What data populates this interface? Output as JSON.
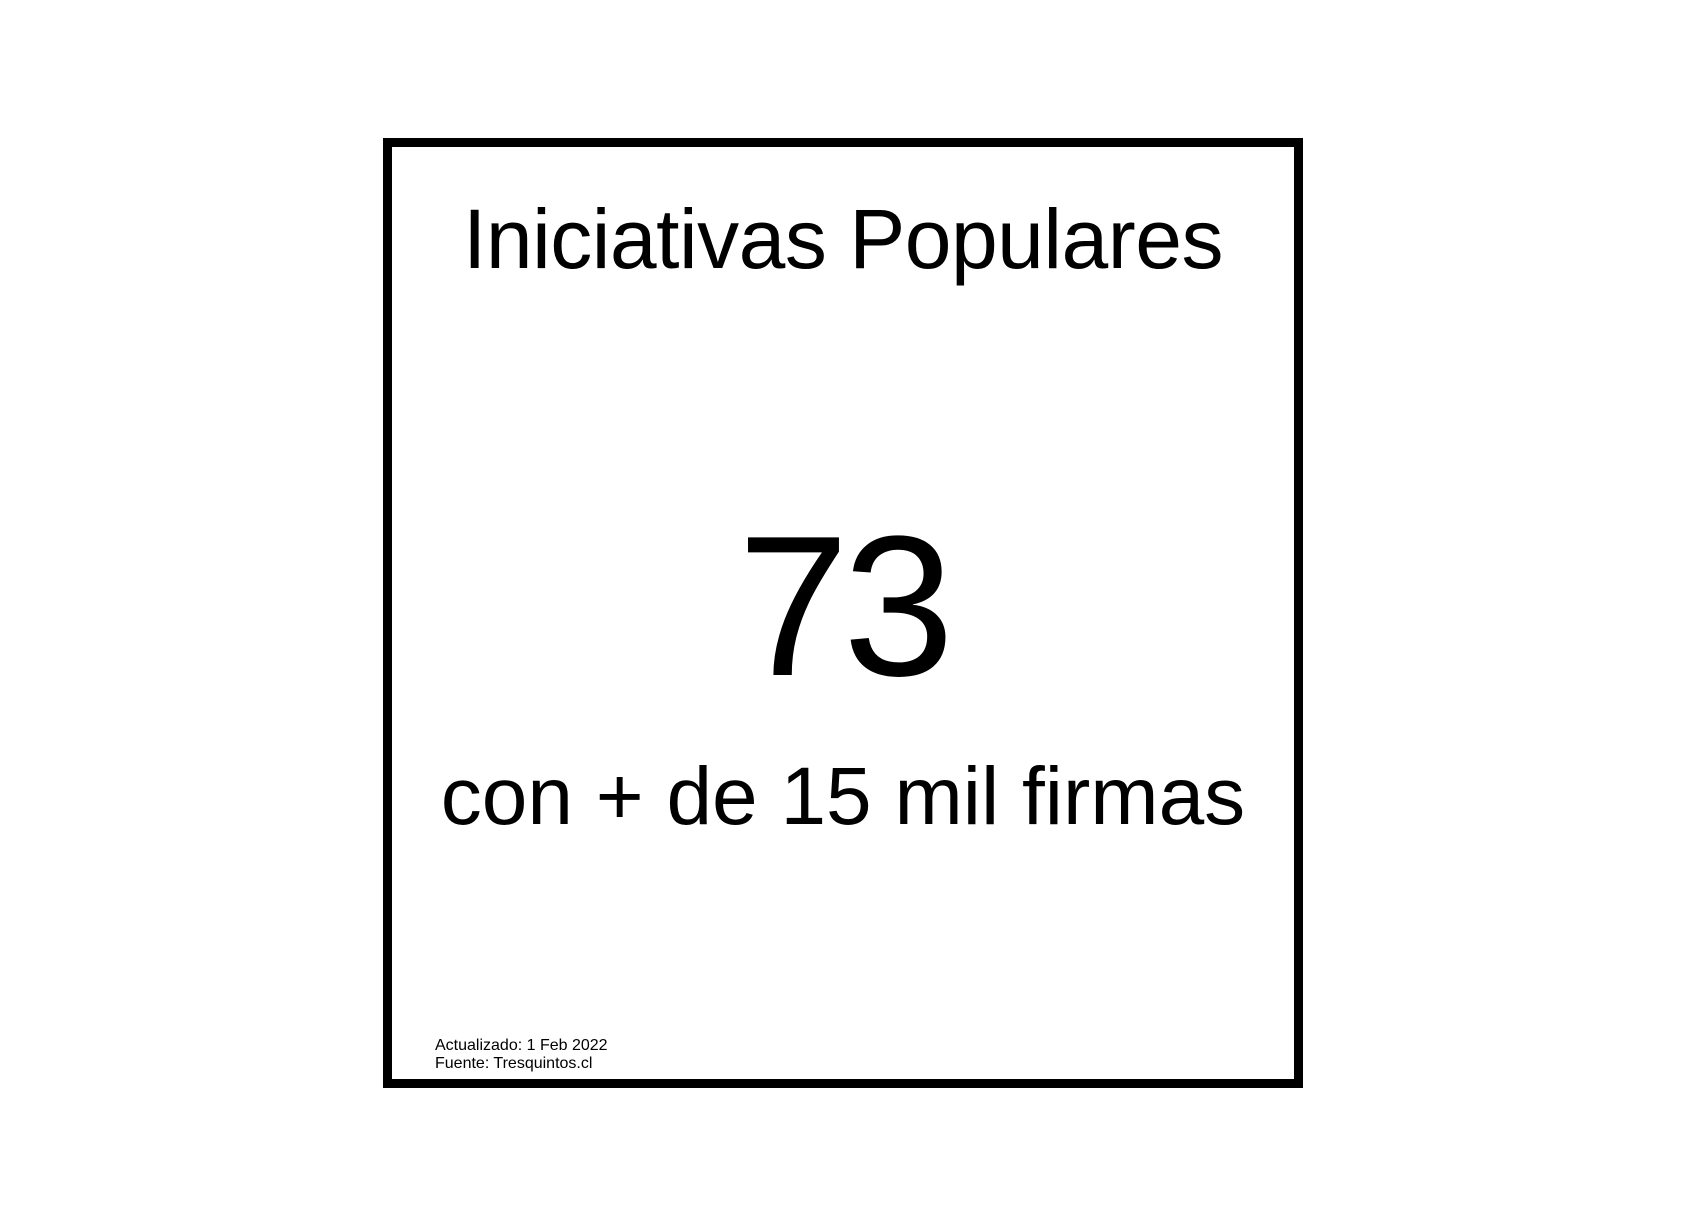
{
  "card": {
    "title": "Iniciativas Populares",
    "count": "73",
    "subtitle": "con + de 15 mil firmas",
    "footer": {
      "updated": "Actualizado: 1 Feb 2022",
      "source": "Fuente: Tresquintos.cl"
    }
  },
  "colors": {
    "background": "#ffffff",
    "foreground": "#000000"
  }
}
